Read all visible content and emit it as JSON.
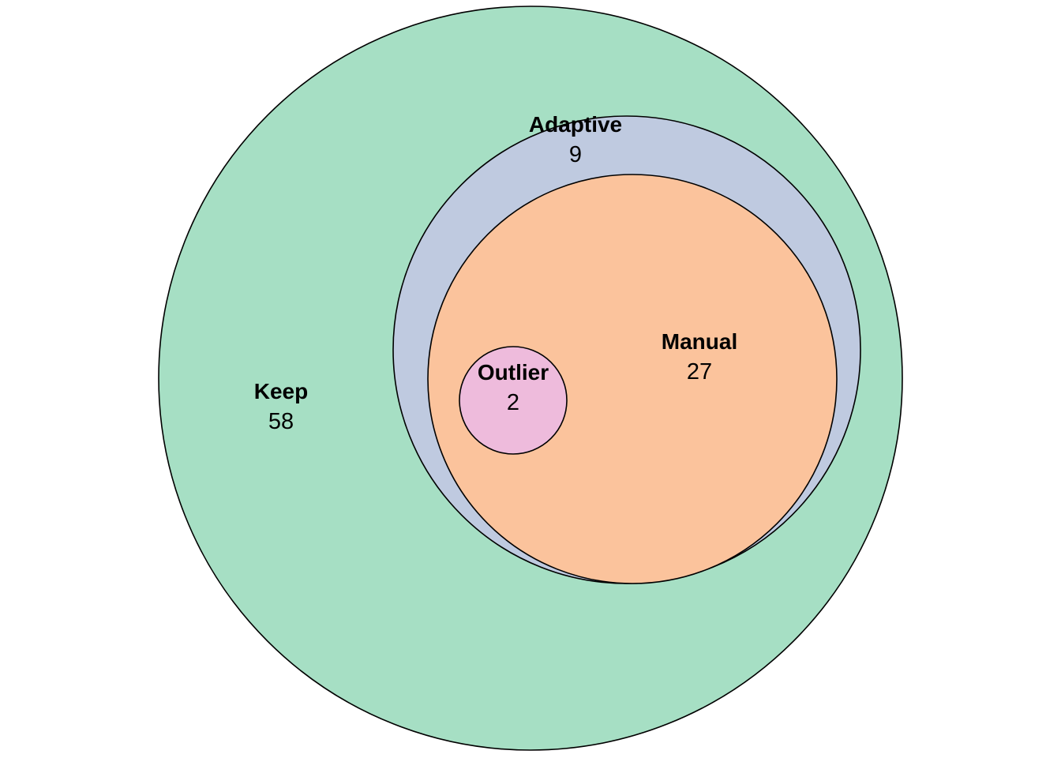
{
  "sets": [
    {
      "key": "keep",
      "name": "Keep",
      "count": "58",
      "color": "#a6dfc4"
    },
    {
      "key": "adaptive",
      "name": "Adaptive",
      "count": "9",
      "color": "#bfcae0"
    },
    {
      "key": "manual",
      "name": "Manual",
      "count": "27",
      "color": "#fbc39c"
    },
    {
      "key": "outlier",
      "name": "Outlier",
      "count": "2",
      "color": "#eebbdc"
    }
  ]
}
